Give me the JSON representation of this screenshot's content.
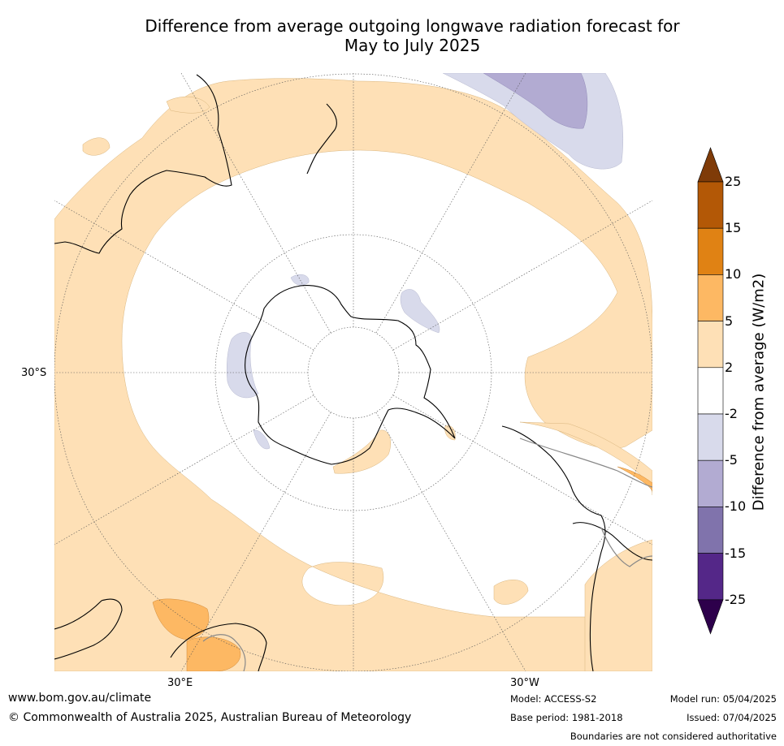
{
  "title": {
    "line1": "Difference from average outgoing longwave radiation forecast for",
    "line2": "May to July 2025"
  },
  "map": {
    "projection": "south polar stereographic",
    "lat_labels": [
      "30°S"
    ],
    "lon_labels": [
      "30°E",
      "30°W"
    ]
  },
  "colorbar": {
    "title": "Difference from average (W/m2)",
    "ticks": [
      "25",
      "15",
      "10",
      "5",
      "2",
      "-2",
      "-5",
      "-10",
      "-15",
      "-25"
    ],
    "colors": [
      "#7f3b08",
      "#b35806",
      "#e08214",
      "#fdb863",
      "#fee0b6",
      "#ffffff",
      "#d8daeb",
      "#b2abd2",
      "#8073ac",
      "#542788",
      "#2d004b"
    ]
  },
  "footer": {
    "website": "www.bom.gov.au/climate",
    "copyright": "© Commonwealth of Australia 2025, Australian Bureau of Meteorology",
    "model": "Model: ACCESS-S2",
    "base_period": "Base period: 1981-2018",
    "model_run": "Model run: 05/04/2025",
    "issued": "Issued: 07/04/2025",
    "disclaimer": "Boundaries are not considered authoritative"
  }
}
